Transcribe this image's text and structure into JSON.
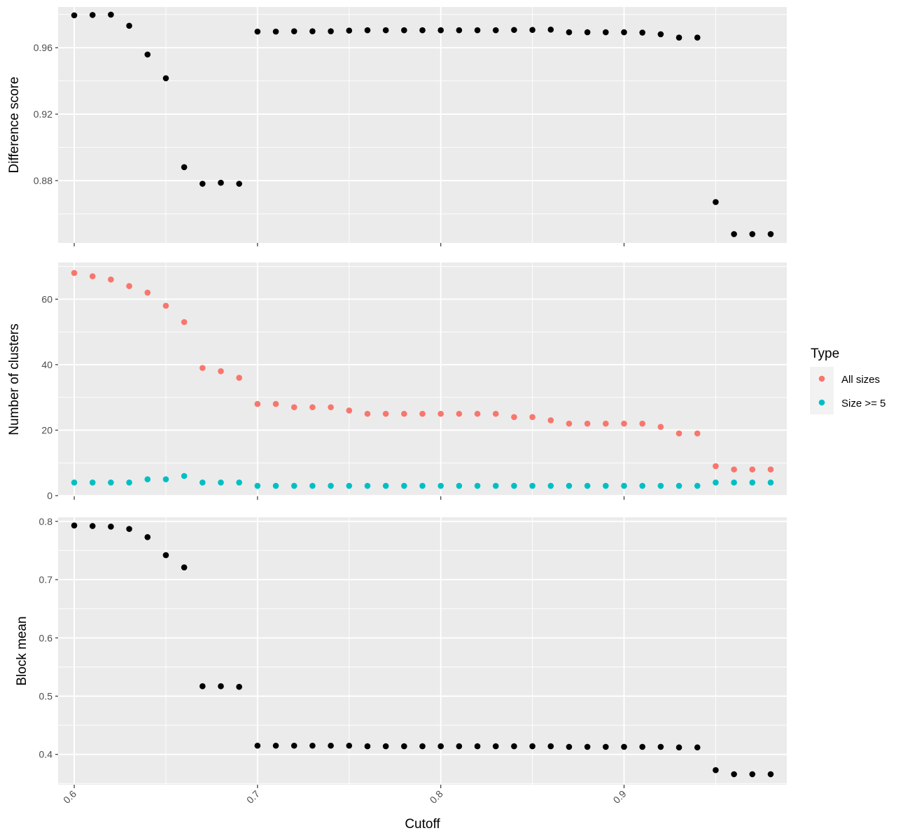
{
  "chart_data": [
    {
      "type": "scatter",
      "id": "difference",
      "ylabel": "Difference score",
      "xlim": [
        0.5912,
        0.9888
      ],
      "ylim": [
        0.8425,
        0.9845
      ],
      "yticks": [
        0.88,
        0.92,
        0.96
      ],
      "yminor": [
        0.86,
        0.9,
        0.94,
        0.98
      ],
      "xticks": [
        0.6,
        0.7,
        0.8,
        0.9
      ],
      "xminor": [
        0.65,
        0.75,
        0.85,
        0.95
      ],
      "series": [
        {
          "color": "#000000",
          "x": [
            0.6,
            0.61,
            0.62,
            0.63,
            0.64,
            0.65,
            0.66,
            0.67,
            0.68,
            0.69,
            0.7,
            0.71,
            0.72,
            0.73,
            0.74,
            0.75,
            0.76,
            0.77,
            0.78,
            0.79,
            0.8,
            0.81,
            0.82,
            0.83,
            0.84,
            0.85,
            0.86,
            0.87,
            0.88,
            0.89,
            0.9,
            0.91,
            0.92,
            0.93,
            0.94,
            0.95,
            0.96,
            0.97,
            0.98
          ],
          "y": [
            0.9795,
            0.9797,
            0.9799,
            0.9732,
            0.9559,
            0.9416,
            0.8881,
            0.8781,
            0.8787,
            0.8781,
            0.9697,
            0.9697,
            0.9699,
            0.9699,
            0.9699,
            0.9703,
            0.9705,
            0.9705,
            0.9705,
            0.9705,
            0.9705,
            0.9705,
            0.9705,
            0.9705,
            0.9707,
            0.9707,
            0.9709,
            0.9693,
            0.9693,
            0.9693,
            0.9693,
            0.9691,
            0.9681,
            0.9661,
            0.9661,
            0.8671,
            0.8478,
            0.8478,
            0.8478
          ]
        }
      ]
    },
    {
      "type": "scatter",
      "id": "clusters",
      "ylabel": "Number of clusters",
      "xlim": [
        0.5912,
        0.9888
      ],
      "ylim": [
        -0.2,
        71.2
      ],
      "yticks": [
        0,
        20,
        40,
        60
      ],
      "yminor": [
        10,
        30,
        50,
        70
      ],
      "xticks": [
        0.6,
        0.7,
        0.8,
        0.9
      ],
      "xminor": [
        0.65,
        0.75,
        0.85,
        0.95
      ],
      "legend": {
        "title": "Type",
        "position": "right",
        "items": [
          {
            "label": "All sizes",
            "color": "#F8766D"
          },
          {
            "label": "Size >= 5",
            "color": "#00BFC4"
          }
        ]
      },
      "series": [
        {
          "name": "All sizes",
          "color": "#F8766D",
          "x": [
            0.6,
            0.61,
            0.62,
            0.63,
            0.64,
            0.65,
            0.66,
            0.67,
            0.68,
            0.69,
            0.7,
            0.71,
            0.72,
            0.73,
            0.74,
            0.75,
            0.76,
            0.77,
            0.78,
            0.79,
            0.8,
            0.81,
            0.82,
            0.83,
            0.84,
            0.85,
            0.86,
            0.87,
            0.88,
            0.89,
            0.9,
            0.91,
            0.92,
            0.93,
            0.94,
            0.95,
            0.96,
            0.97,
            0.98
          ],
          "y": [
            68,
            67,
            66,
            64,
            62,
            58,
            53,
            39,
            38,
            36,
            28,
            28,
            27,
            27,
            27,
            26,
            25,
            25,
            25,
            25,
            25,
            25,
            25,
            25,
            24,
            24,
            23,
            22,
            22,
            22,
            22,
            22,
            21,
            19,
            19,
            9,
            8,
            8,
            8
          ]
        },
        {
          "name": "Size >= 5",
          "color": "#00BFC4",
          "x": [
            0.6,
            0.61,
            0.62,
            0.63,
            0.64,
            0.65,
            0.66,
            0.67,
            0.68,
            0.69,
            0.7,
            0.71,
            0.72,
            0.73,
            0.74,
            0.75,
            0.76,
            0.77,
            0.78,
            0.79,
            0.8,
            0.81,
            0.82,
            0.83,
            0.84,
            0.85,
            0.86,
            0.87,
            0.88,
            0.89,
            0.9,
            0.91,
            0.92,
            0.93,
            0.94,
            0.95,
            0.96,
            0.97,
            0.98
          ],
          "y": [
            4,
            4,
            4,
            4,
            5,
            5,
            6,
            4,
            4,
            4,
            3,
            3,
            3,
            3,
            3,
            3,
            3,
            3,
            3,
            3,
            3,
            3,
            3,
            3,
            3,
            3,
            3,
            3,
            3,
            3,
            3,
            3,
            3,
            3,
            3,
            4,
            4,
            4,
            4
          ]
        }
      ]
    },
    {
      "type": "scatter",
      "id": "blockmean",
      "ylabel": "Block mean",
      "xlabel": "Cutoff",
      "xlim": [
        0.5912,
        0.9888
      ],
      "ylim": [
        0.348,
        0.807
      ],
      "yticks": [
        0.4,
        0.5,
        0.6,
        0.7,
        0.8
      ],
      "yminor": [
        0.35,
        0.45,
        0.55,
        0.65,
        0.75
      ],
      "xticks": [
        0.6,
        0.7,
        0.8,
        0.9
      ],
      "xticklabels": [
        "0.6",
        "0.7",
        "0.8",
        "0.9"
      ],
      "xminor": [
        0.65,
        0.75,
        0.85,
        0.95
      ],
      "series": [
        {
          "color": "#000000",
          "x": [
            0.6,
            0.61,
            0.62,
            0.63,
            0.64,
            0.65,
            0.66,
            0.67,
            0.68,
            0.69,
            0.7,
            0.71,
            0.72,
            0.73,
            0.74,
            0.75,
            0.76,
            0.77,
            0.78,
            0.79,
            0.8,
            0.81,
            0.82,
            0.83,
            0.84,
            0.85,
            0.86,
            0.87,
            0.88,
            0.89,
            0.9,
            0.91,
            0.92,
            0.93,
            0.94,
            0.95,
            0.96,
            0.97,
            0.98
          ],
          "y": [
            0.793,
            0.792,
            0.791,
            0.787,
            0.773,
            0.742,
            0.721,
            0.517,
            0.517,
            0.516,
            0.415,
            0.415,
            0.415,
            0.415,
            0.415,
            0.415,
            0.414,
            0.414,
            0.414,
            0.414,
            0.414,
            0.414,
            0.414,
            0.414,
            0.414,
            0.414,
            0.414,
            0.413,
            0.413,
            0.413,
            0.413,
            0.413,
            0.413,
            0.412,
            0.412,
            0.373,
            0.366,
            0.366,
            0.366
          ]
        }
      ]
    }
  ]
}
